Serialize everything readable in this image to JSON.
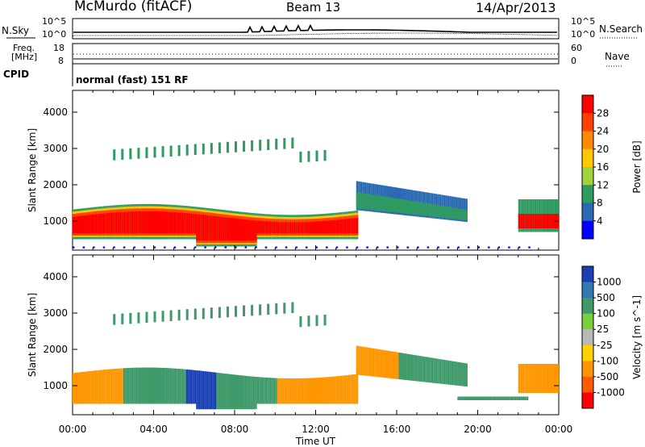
{
  "header": {
    "station": "McMurdo (fitACF)",
    "beam": "Beam 13",
    "date": "14/Apr/2013"
  },
  "top_panel": {
    "nsky_label": "N.Sky",
    "nsearch_label": "N.Search",
    "left_ticks": [
      "10^5",
      "10^0"
    ],
    "right_ticks": [
      "10^5",
      "10^0"
    ]
  },
  "freq_panel": {
    "freq_label_1": "Freq.",
    "freq_label_2": "[MHz]",
    "left_ticks": [
      "18",
      "8"
    ],
    "right_ticks": [
      "60",
      "0"
    ],
    "nave_label": "Nave"
  },
  "cpid": {
    "label": "CPID",
    "mode": "normal (fast) 151 RF"
  },
  "chart_data": [
    {
      "type": "heatmap",
      "name": "power",
      "ylabel": "Slant Range [km]",
      "xlabel": "",
      "ylim": [
        200,
        4600
      ],
      "yticks": [
        1000,
        2000,
        3000,
        4000
      ],
      "xlim": [
        0,
        24
      ],
      "colorbar_label": "Power [dB]",
      "colorbar_ticks": [
        "28",
        "24",
        "20",
        "16",
        "12",
        "8",
        "4"
      ],
      "colorbar_colors": [
        "#ff0000",
        "#ff4000",
        "#ff8a00",
        "#ffc800",
        "#a0d23c",
        "#2e9b5f",
        "#2a6ab3",
        "#0000ff"
      ]
    },
    {
      "type": "heatmap",
      "name": "velocity",
      "ylabel": "Slant Range [km]",
      "xlabel": "Time UT",
      "ylim": [
        200,
        4600
      ],
      "yticks": [
        1000,
        2000,
        3000,
        4000
      ],
      "xlim": [
        0,
        24
      ],
      "xticks": [
        "00:00",
        "04:00",
        "08:00",
        "12:00",
        "16:00",
        "20:00",
        "00:00"
      ],
      "colorbar_label": "Velocity [m s^-1]",
      "colorbar_ticks": [
        "1000",
        "500",
        "100",
        "25",
        "-25",
        "-100",
        "-500",
        "-1000"
      ],
      "colorbar_colors": [
        "#1a3fb5",
        "#2e7ab0",
        "#3f9a6a",
        "#7ccf3c",
        "#b8b8b8",
        "#ffd000",
        "#ff9600",
        "#ff5a00",
        "#ff0000"
      ]
    }
  ]
}
